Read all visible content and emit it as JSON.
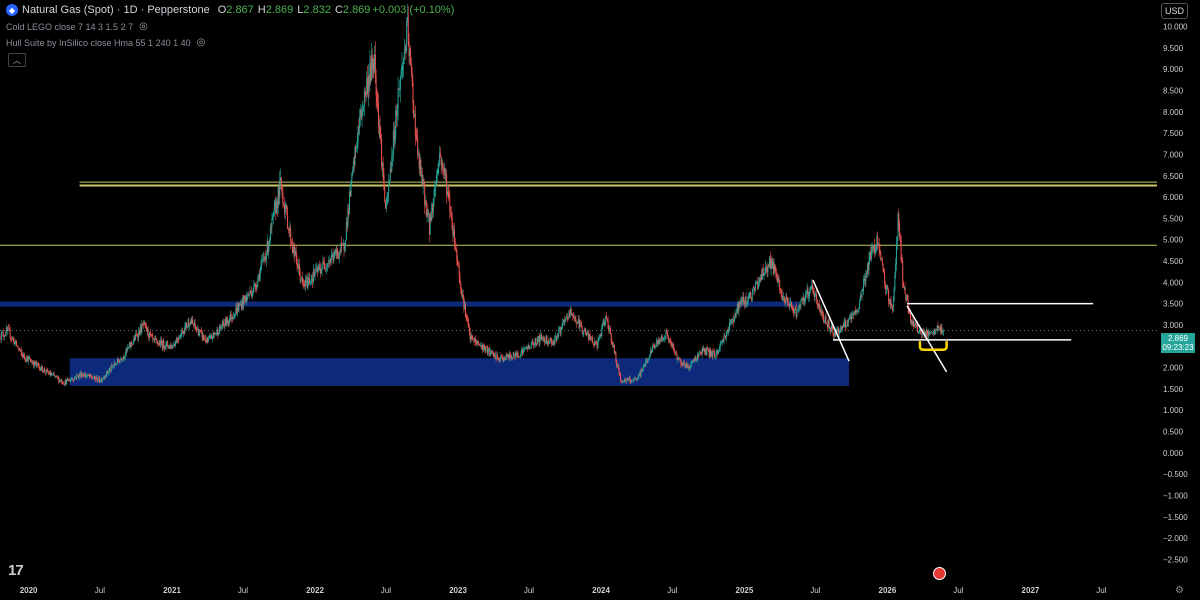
{
  "header": {
    "title": "Natural Gas (Spot) · 1D · Pepperstone",
    "ohlc": [
      {
        "key": "O",
        "value": "2.867"
      },
      {
        "key": "H",
        "value": "2.869"
      },
      {
        "key": "L",
        "value": "2.832"
      },
      {
        "key": "C",
        "value": "2.869"
      }
    ],
    "change": "+0.003 (+0.10%)"
  },
  "indicators": [
    "Cold LEGO close 7 14 3 1.5 2 7",
    "Hull Suite by InSilico close Hma 55 1 240 1 40"
  ],
  "currency": "USD",
  "last_price": "2.869",
  "countdown": "09:23:23",
  "colors": {
    "background": "#000000",
    "up": "#26a69a",
    "down": "#ef5350",
    "zone": "#0d2a7a",
    "yellow_line": "#c8c864",
    "white_line": "#ffffff",
    "price_label": "#26a69a"
  },
  "chart_data": {
    "type": "candlestick",
    "title": "Natural Gas (Spot)",
    "timeframe": "1D",
    "y_axis": {
      "range": [
        -2.7,
        10.2
      ],
      "ticks": [
        "10.000",
        "9.500",
        "9.000",
        "8.500",
        "8.000",
        "7.500",
        "7.000",
        "6.500",
        "6.000",
        "5.500",
        "5.000",
        "4.500",
        "4.000",
        "3.500",
        "3.000",
        "2.500",
        "2.000",
        "1.500",
        "1.000",
        "0.500",
        "0.000",
        "−0.500",
        "−1.000",
        "−1.500",
        "−2.000",
        "−2.500"
      ]
    },
    "x_axis": {
      "range": [
        "2019-10-20",
        "2027-11-20"
      ],
      "ticks": [
        {
          "date": "2020-01-01",
          "label": "2020"
        },
        {
          "date": "2020-07-01",
          "label": "Jul"
        },
        {
          "date": "2021-01-01",
          "label": "2021"
        },
        {
          "date": "2021-07-01",
          "label": "Jul"
        },
        {
          "date": "2022-01-01",
          "label": "2022"
        },
        {
          "date": "2022-07-01",
          "label": "Jul"
        },
        {
          "date": "2023-01-01",
          "label": "2023"
        },
        {
          "date": "2023-07-01",
          "label": "Jul"
        },
        {
          "date": "2024-01-01",
          "label": "2024"
        },
        {
          "date": "2024-07-01",
          "label": "Jul"
        },
        {
          "date": "2025-01-01",
          "label": "2025"
        },
        {
          "date": "2025-07-01",
          "label": "Jul"
        },
        {
          "date": "2026-01-01",
          "label": "2026"
        },
        {
          "date": "2026-07-01",
          "label": "Jul"
        },
        {
          "date": "2027-01-01",
          "label": "2027"
        },
        {
          "date": "2027-07-01",
          "label": "Jul"
        }
      ]
    },
    "price_path": [
      [
        "2019-10-20",
        2.75
      ],
      [
        "2019-11-10",
        2.85
      ],
      [
        "2019-12-15",
        2.3
      ],
      [
        "2020-02-15",
        1.9
      ],
      [
        "2020-04-01",
        1.65
      ],
      [
        "2020-05-15",
        1.85
      ],
      [
        "2020-07-01",
        1.7
      ],
      [
        "2020-09-01",
        2.3
      ],
      [
        "2020-10-20",
        3.0
      ],
      [
        "2020-11-15",
        2.6
      ],
      [
        "2021-01-01",
        2.5
      ],
      [
        "2021-02-15",
        3.1
      ],
      [
        "2021-04-01",
        2.6
      ],
      [
        "2021-06-01",
        3.2
      ],
      [
        "2021-08-01",
        3.9
      ],
      [
        "2021-09-01",
        4.8
      ],
      [
        "2021-10-05",
        6.3
      ],
      [
        "2021-11-01",
        5.0
      ],
      [
        "2021-12-01",
        3.9
      ],
      [
        "2022-01-01",
        4.2
      ],
      [
        "2022-02-15",
        4.6
      ],
      [
        "2022-03-15",
        4.8
      ],
      [
        "2022-04-20",
        7.5
      ],
      [
        "2022-05-10",
        8.5
      ],
      [
        "2022-06-01",
        9.3
      ],
      [
        "2022-07-01",
        5.6
      ],
      [
        "2022-08-01",
        8.4
      ],
      [
        "2022-08-25",
        9.9
      ],
      [
        "2022-09-20",
        7.0
      ],
      [
        "2022-10-20",
        5.3
      ],
      [
        "2022-11-15",
        7.0
      ],
      [
        "2022-12-01",
        6.4
      ],
      [
        "2022-12-20",
        5.2
      ],
      [
        "2023-01-10",
        3.8
      ],
      [
        "2023-02-01",
        2.7
      ],
      [
        "2023-03-01",
        2.5
      ],
      [
        "2023-04-15",
        2.2
      ],
      [
        "2023-06-01",
        2.3
      ],
      [
        "2023-08-01",
        2.7
      ],
      [
        "2023-09-01",
        2.6
      ],
      [
        "2023-10-15",
        3.3
      ],
      [
        "2023-11-15",
        2.9
      ],
      [
        "2023-12-20",
        2.5
      ],
      [
        "2024-01-15",
        3.2
      ],
      [
        "2024-02-20",
        1.7
      ],
      [
        "2024-04-01",
        1.7
      ],
      [
        "2024-05-15",
        2.5
      ],
      [
        "2024-06-15",
        2.8
      ],
      [
        "2024-07-15",
        2.2
      ],
      [
        "2024-08-10",
        2.0
      ],
      [
        "2024-09-15",
        2.4
      ],
      [
        "2024-10-20",
        2.3
      ],
      [
        "2024-11-20",
        2.9
      ],
      [
        "2024-12-20",
        3.5
      ],
      [
        "2025-01-20",
        3.7
      ],
      [
        "2025-02-15",
        4.2
      ],
      [
        "2025-03-10",
        4.5
      ],
      [
        "2025-04-10",
        3.6
      ],
      [
        "2025-05-15",
        3.3
      ],
      [
        "2025-06-20",
        3.9
      ],
      [
        "2025-07-20",
        3.2
      ],
      [
        "2025-08-20",
        2.8
      ],
      [
        "2025-09-15",
        3.0
      ],
      [
        "2025-10-15",
        3.3
      ],
      [
        "2025-11-15",
        4.5
      ],
      [
        "2025-12-05",
        5.0
      ],
      [
        "2025-12-25",
        4.0
      ],
      [
        "2026-01-15",
        3.3
      ],
      [
        "2026-01-28",
        5.6
      ],
      [
        "2026-02-10",
        4.0
      ],
      [
        "2026-03-01",
        3.1
      ],
      [
        "2026-04-01",
        2.8
      ],
      [
        "2026-04-20",
        2.75
      ],
      [
        "2026-05-10",
        2.9
      ],
      [
        "2026-05-25",
        2.87
      ]
    ],
    "zones": [
      {
        "from": "2019-10-20",
        "to": "2025-05-20",
        "low": 3.43,
        "high": 3.55
      },
      {
        "from": "2020-04-15",
        "to": "2025-09-25",
        "low": 1.57,
        "high": 2.22
      }
    ],
    "horizontal_lines": [
      {
        "from": "2020-05-10",
        "to": "2027-11-20",
        "value": 6.27,
        "width": 2
      },
      {
        "from": "2020-05-10",
        "to": "2027-11-20",
        "value": 6.35,
        "width": 1
      },
      {
        "from": "2019-10-20",
        "to": "2027-11-20",
        "value": 4.87,
        "width": 1
      }
    ],
    "trend_lines": [
      {
        "x1": "2025-06-25",
        "y1": 4.05,
        "x2": "2025-09-25",
        "y2": 2.15
      },
      {
        "x1": "2026-02-20",
        "y1": 3.45,
        "x2": "2026-06-01",
        "y2": 1.9
      },
      {
        "x1": "2025-08-15",
        "y1": 2.65,
        "x2": "2027-04-15",
        "y2": 2.65
      },
      {
        "x1": "2026-02-20",
        "y1": 3.5,
        "x2": "2027-06-10",
        "y2": 3.5
      }
    ],
    "current_price_line": 2.869,
    "annotation_bracket": {
      "from": "2026-03-25",
      "to": "2026-06-01",
      "top": 2.62,
      "bottom": 2.42
    }
  }
}
